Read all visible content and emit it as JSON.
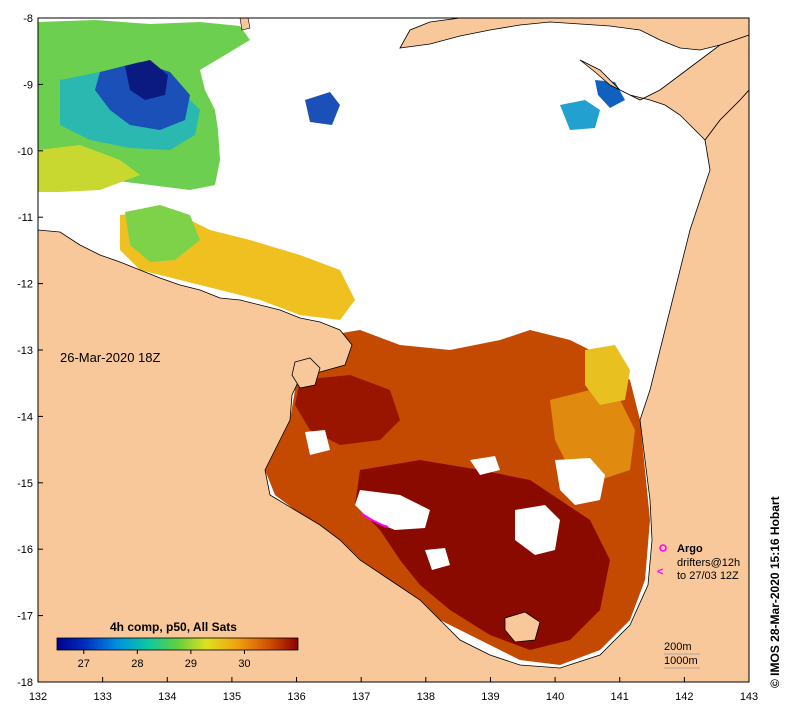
{
  "map": {
    "datetime_label": "26-Mar-2020 18Z",
    "credit": "© IMOS 28-Mar-2020 15:16 Hobart",
    "lon_ticks": [
      "132",
      "133",
      "134",
      "135",
      "136",
      "137",
      "138",
      "139",
      "140",
      "141",
      "142",
      "143"
    ],
    "lat_ticks": [
      "-8",
      "-9",
      "-10",
      "-11",
      "-12",
      "-13",
      "-14",
      "-15",
      "-16",
      "-17",
      "-18"
    ],
    "lon_range": [
      132,
      143
    ],
    "lat_range": [
      -18,
      -8
    ],
    "colors": {
      "land": "#f9c89a",
      "no_data": "#ffffff",
      "warmest": "#8b0a00",
      "warm": "#c34a00",
      "mid_warm": "#e08a10",
      "yellow": "#f0d020",
      "green": "#7ed24a",
      "cyan": "#22b8c8",
      "blue": "#1a4fb0",
      "navy": "#0b1a80",
      "argo": "#ff00ff"
    },
    "colorbar": {
      "title": "4h comp, p50, All Sats",
      "ticks": [
        "27",
        "28",
        "29",
        "30"
      ],
      "min": 26.5,
      "max": 31.0
    },
    "legend": {
      "argo": "Argo",
      "drifters_line1": "drifters@12h",
      "drifters_line2": "to 27/03 12Z",
      "contour_200m": "200m",
      "contour_1000m": "1000m",
      "drifter_symbol": "<"
    }
  }
}
